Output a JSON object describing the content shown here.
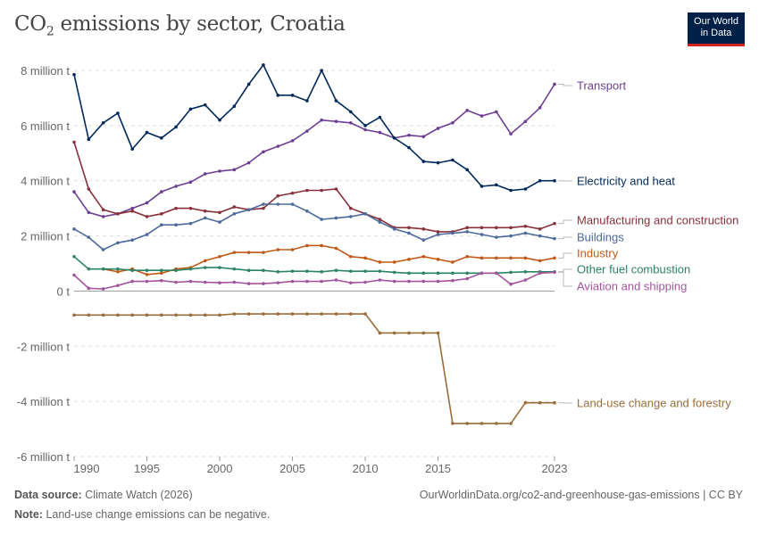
{
  "title": {
    "main": "CO",
    "sub": "2",
    "rest": " emissions by sector, Croatia"
  },
  "logo": {
    "line1": "Our World",
    "line2": "in Data"
  },
  "footer": {
    "source_label": "Data source:",
    "source": "Climate Watch (2026)",
    "url": "OurWorldinData.org/co2-and-greenhouse-gas-emissions | CC BY",
    "note_label": "Note:",
    "note": "Land-use change emissions can be negative."
  },
  "chart_data": {
    "type": "line",
    "title": "CO₂ emissions by sector, Croatia",
    "xlim": [
      1990,
      2023
    ],
    "ylim": [
      -6,
      8
    ],
    "y_unit": "million t",
    "yticks": [
      -6,
      -4,
      -2,
      0,
      2,
      4,
      6,
      8
    ],
    "ytick_labels": [
      "-6 million t",
      "-4 million t",
      "-2 million t",
      "0 t",
      "2 million t",
      "4 million t",
      "6 million t",
      "8 million t"
    ],
    "xticks": [
      1990,
      1995,
      2000,
      2005,
      2010,
      2015,
      2023
    ],
    "xtick_labels": [
      "1990",
      "1995",
      "2000",
      "2005",
      "2010",
      "2015",
      "2023"
    ],
    "grid": "horizontal dashed",
    "legend": "right, labels at line ends",
    "start_year": 1990,
    "series": [
      {
        "name": "Transport",
        "color": "#6d3e91",
        "values": [
          3.6,
          2.85,
          2.7,
          2.8,
          3.0,
          3.2,
          3.6,
          3.8,
          3.95,
          4.25,
          4.35,
          4.4,
          4.65,
          5.05,
          5.25,
          5.45,
          5.8,
          6.2,
          6.15,
          6.1,
          5.85,
          5.75,
          5.55,
          5.65,
          5.6,
          5.9,
          6.1,
          6.55,
          6.35,
          6.5,
          5.7,
          6.15,
          6.65,
          7.5
        ]
      },
      {
        "name": "Electricity and heat",
        "color": "#00295b",
        "values": [
          7.85,
          5.5,
          6.1,
          6.45,
          5.15,
          5.75,
          5.55,
          5.95,
          6.6,
          6.75,
          6.2,
          6.7,
          7.5,
          8.2,
          7.1,
          7.1,
          6.9,
          8.0,
          6.9,
          6.5,
          6.0,
          6.3,
          5.55,
          5.2,
          4.7,
          4.65,
          4.75,
          4.4,
          3.8,
          3.85,
          3.65,
          3.7,
          4.0,
          4.0
        ]
      },
      {
        "name": "Manufacturing and construction",
        "color": "#883039",
        "values": [
          5.4,
          3.7,
          2.95,
          2.8,
          2.9,
          2.7,
          2.8,
          3.0,
          3.0,
          2.9,
          2.85,
          3.05,
          2.95,
          3.0,
          3.45,
          3.55,
          3.65,
          3.65,
          3.7,
          3.0,
          2.8,
          2.6,
          2.3,
          2.3,
          2.25,
          2.15,
          2.15,
          2.3,
          2.3,
          2.3,
          2.3,
          2.35,
          2.25,
          2.45
        ]
      },
      {
        "name": "Buildings",
        "color": "#4c6a9c",
        "values": [
          2.25,
          1.95,
          1.5,
          1.75,
          1.85,
          2.05,
          2.4,
          2.4,
          2.45,
          2.65,
          2.5,
          2.8,
          2.95,
          3.15,
          3.15,
          3.15,
          2.9,
          2.6,
          2.65,
          2.7,
          2.8,
          2.5,
          2.25,
          2.1,
          1.85,
          2.05,
          2.1,
          2.15,
          2.05,
          1.95,
          2.0,
          2.1,
          2.0,
          1.9
        ]
      },
      {
        "name": "Industry",
        "color": "#c05917",
        "values": [
          null,
          null,
          0.8,
          0.7,
          0.8,
          0.6,
          0.65,
          0.8,
          0.85,
          1.1,
          1.25,
          1.4,
          1.4,
          1.4,
          1.5,
          1.5,
          1.65,
          1.65,
          1.55,
          1.25,
          1.2,
          1.05,
          1.05,
          1.15,
          1.25,
          1.15,
          1.05,
          1.25,
          1.2,
          1.2,
          1.2,
          1.2,
          1.1,
          1.2
        ]
      },
      {
        "name": "Other fuel combustion",
        "color": "#2c8465",
        "values": [
          1.25,
          0.8,
          0.8,
          0.8,
          0.75,
          0.75,
          0.75,
          0.75,
          0.8,
          0.85,
          0.85,
          0.8,
          0.75,
          0.75,
          0.7,
          0.72,
          0.72,
          0.7,
          0.75,
          0.72,
          0.72,
          0.72,
          0.68,
          0.65,
          0.65,
          0.65,
          0.65,
          0.65,
          0.65,
          0.65,
          0.68,
          0.7,
          0.7,
          0.7
        ]
      },
      {
        "name": "Aviation and shipping",
        "color": "#a2559c",
        "values": [
          0.58,
          0.1,
          0.08,
          0.2,
          0.35,
          0.35,
          0.38,
          0.32,
          0.35,
          0.32,
          0.3,
          0.32,
          0.27,
          0.27,
          0.3,
          0.35,
          0.35,
          0.35,
          0.4,
          0.3,
          0.32,
          0.4,
          0.35,
          0.35,
          0.35,
          0.35,
          0.38,
          0.45,
          0.65,
          0.65,
          0.25,
          0.4,
          0.65,
          0.68
        ]
      },
      {
        "name": "Land-use change and forestry",
        "color": "#996d39",
        "values": [
          -0.87,
          -0.87,
          -0.87,
          -0.87,
          -0.87,
          -0.87,
          -0.87,
          -0.87,
          -0.87,
          -0.87,
          -0.87,
          -0.83,
          -0.83,
          -0.83,
          -0.83,
          -0.83,
          -0.83,
          -0.83,
          -0.83,
          -0.83,
          -0.83,
          -1.52,
          -1.52,
          -1.52,
          -1.52,
          -1.52,
          -4.8,
          -4.8,
          -4.8,
          -4.8,
          -4.8,
          -4.05,
          -4.05,
          -4.05
        ]
      }
    ]
  }
}
